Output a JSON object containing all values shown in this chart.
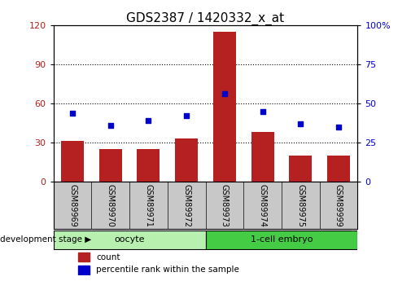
{
  "title": "GDS2387 / 1420332_x_at",
  "samples": [
    "GSM89969",
    "GSM89970",
    "GSM89971",
    "GSM89972",
    "GSM89973",
    "GSM89974",
    "GSM89975",
    "GSM89999"
  ],
  "counts": [
    31,
    25,
    25,
    33,
    115,
    38,
    20,
    20
  ],
  "percentiles": [
    44,
    36,
    39,
    42,
    56,
    45,
    37,
    35
  ],
  "left_ylim": [
    0,
    120
  ],
  "right_ylim": [
    0,
    100
  ],
  "left_yticks": [
    0,
    30,
    60,
    90,
    120
  ],
  "right_yticks": [
    0,
    25,
    50,
    75,
    100
  ],
  "bar_color": "#b52020",
  "dot_color": "#0000cc",
  "groups": [
    {
      "label": "oocyte",
      "start": 0,
      "end": 4,
      "color": "#b8f0b0"
    },
    {
      "label": "1-cell embryo",
      "start": 4,
      "end": 8,
      "color": "#44cc44"
    }
  ],
  "legend_count_label": "count",
  "legend_pct_label": "percentile rank within the sample",
  "dev_stage_label": "development stage",
  "background_color": "#ffffff",
  "title_fontsize": 11,
  "tick_fontsize": 8,
  "sample_label_fontsize": 7,
  "sample_label_color": "#d0d0d0"
}
